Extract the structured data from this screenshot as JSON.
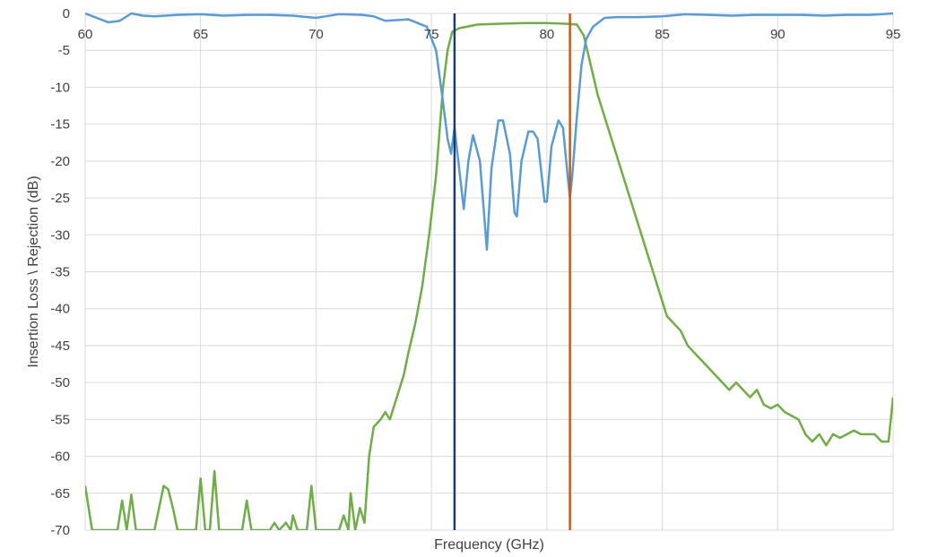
{
  "chart_data": {
    "type": "line",
    "title": "",
    "xlabel": "Frequency (GHz)",
    "ylabel": "Insertion Loss \\ Rejection (dB)",
    "xlim": [
      60,
      95
    ],
    "ylim": [
      -70,
      0
    ],
    "xticks": [
      60,
      65,
      70,
      75,
      80,
      85,
      90,
      95
    ],
    "yticks": [
      0,
      -5,
      -10,
      -15,
      -20,
      -25,
      -30,
      -35,
      -40,
      -45,
      -50,
      -55,
      -60,
      -65,
      -70
    ],
    "grid": true,
    "legend": "none",
    "series": [
      {
        "color": "#5b9bd5",
        "points": [
          [
            60,
            0
          ],
          [
            60.5,
            -0.6
          ],
          [
            61,
            -1.2
          ],
          [
            61.5,
            -1.0
          ],
          [
            62,
            0
          ],
          [
            62.5,
            -0.3
          ],
          [
            63,
            -0.4
          ],
          [
            64,
            -0.2
          ],
          [
            65,
            -0.1
          ],
          [
            66,
            -0.3
          ],
          [
            67,
            -0.2
          ],
          [
            68,
            -0.2
          ],
          [
            69,
            -0.3
          ],
          [
            70,
            -0.6
          ],
          [
            71,
            -0.1
          ],
          [
            72,
            -0.2
          ],
          [
            72.5,
            -0.4
          ],
          [
            73,
            -1.0
          ],
          [
            74,
            -0.8
          ],
          [
            74.8,
            -1.8
          ],
          [
            75.2,
            -5
          ],
          [
            75.5,
            -12
          ],
          [
            75.7,
            -17
          ],
          [
            75.85,
            -19
          ],
          [
            76.0,
            -15.5
          ],
          [
            76.2,
            -21
          ],
          [
            76.4,
            -26.5
          ],
          [
            76.6,
            -20
          ],
          [
            76.8,
            -16.5
          ],
          [
            77.1,
            -20
          ],
          [
            77.3,
            -28
          ],
          [
            77.4,
            -32
          ],
          [
            77.6,
            -21
          ],
          [
            77.9,
            -14.5
          ],
          [
            78.1,
            -14.5
          ],
          [
            78.4,
            -19
          ],
          [
            78.6,
            -27
          ],
          [
            78.7,
            -27.5
          ],
          [
            78.9,
            -20
          ],
          [
            79.2,
            -16
          ],
          [
            79.4,
            -16
          ],
          [
            79.6,
            -17
          ],
          [
            79.9,
            -25.5
          ],
          [
            80.0,
            -25.5
          ],
          [
            80.2,
            -18
          ],
          [
            80.5,
            -14.5
          ],
          [
            80.7,
            -15.5
          ],
          [
            80.9,
            -22
          ],
          [
            81.0,
            -25
          ],
          [
            81.1,
            -22
          ],
          [
            81.3,
            -14
          ],
          [
            81.5,
            -7
          ],
          [
            81.7,
            -3.5
          ],
          [
            82,
            -1.8
          ],
          [
            82.5,
            -0.6
          ],
          [
            83,
            -0.5
          ],
          [
            84,
            -0.5
          ],
          [
            85,
            -0.4
          ],
          [
            86,
            -0.1
          ],
          [
            87,
            -0.2
          ],
          [
            88,
            -0.3
          ],
          [
            89,
            -0.2
          ],
          [
            90,
            -0.2
          ],
          [
            91,
            -0.2
          ],
          [
            92,
            -0.3
          ],
          [
            93,
            -0.2
          ],
          [
            94,
            -0.2
          ],
          [
            95,
            0
          ]
        ]
      },
      {
        "color": "#70ad47",
        "points": [
          [
            60,
            -64
          ],
          [
            60.3,
            -70
          ],
          [
            60.8,
            -70
          ],
          [
            61,
            -70
          ],
          [
            61.4,
            -70
          ],
          [
            61.6,
            -66
          ],
          [
            61.8,
            -70
          ],
          [
            62,
            -65.2
          ],
          [
            62.2,
            -70
          ],
          [
            63,
            -70
          ],
          [
            63.2,
            -67
          ],
          [
            63.4,
            -64
          ],
          [
            63.6,
            -64.5
          ],
          [
            63.8,
            -67
          ],
          [
            64,
            -70
          ],
          [
            64.8,
            -70
          ],
          [
            65,
            -63
          ],
          [
            65.2,
            -70
          ],
          [
            65.4,
            -70
          ],
          [
            65.6,
            -62
          ],
          [
            65.8,
            -70
          ],
          [
            66.8,
            -70
          ],
          [
            67,
            -66
          ],
          [
            67.2,
            -70
          ],
          [
            68,
            -70
          ],
          [
            68.2,
            -69
          ],
          [
            68.4,
            -70
          ],
          [
            68.7,
            -69
          ],
          [
            68.9,
            -70
          ],
          [
            69,
            -68
          ],
          [
            69.2,
            -70
          ],
          [
            69.6,
            -70
          ],
          [
            69.8,
            -64
          ],
          [
            70,
            -70
          ],
          [
            70.2,
            -70
          ],
          [
            71,
            -70
          ],
          [
            71.2,
            -68
          ],
          [
            71.4,
            -70
          ],
          [
            71.5,
            -65
          ],
          [
            71.7,
            -70
          ],
          [
            71.9,
            -67
          ],
          [
            72.1,
            -69
          ],
          [
            72.3,
            -60
          ],
          [
            72.5,
            -56
          ],
          [
            72.8,
            -55
          ],
          [
            73,
            -54
          ],
          [
            73.2,
            -55
          ],
          [
            73.4,
            -53
          ],
          [
            73.6,
            -51
          ],
          [
            73.8,
            -49
          ],
          [
            74,
            -46
          ],
          [
            74.3,
            -42
          ],
          [
            74.6,
            -37
          ],
          [
            74.9,
            -30
          ],
          [
            75.2,
            -22
          ],
          [
            75.5,
            -10
          ],
          [
            75.7,
            -5
          ],
          [
            75.9,
            -2.5
          ],
          [
            76.2,
            -2
          ],
          [
            77,
            -1.5
          ],
          [
            78,
            -1.4
          ],
          [
            79,
            -1.3
          ],
          [
            80,
            -1.3
          ],
          [
            80.8,
            -1.4
          ],
          [
            81.3,
            -1.5
          ],
          [
            81.6,
            -3
          ],
          [
            81.9,
            -7
          ],
          [
            82.2,
            -11
          ],
          [
            82.5,
            -14
          ],
          [
            82.8,
            -17
          ],
          [
            83.1,
            -20
          ],
          [
            83.4,
            -23
          ],
          [
            83.7,
            -26
          ],
          [
            84,
            -29
          ],
          [
            84.3,
            -32
          ],
          [
            84.6,
            -35
          ],
          [
            84.9,
            -38
          ],
          [
            85.2,
            -41
          ],
          [
            85.5,
            -42
          ],
          [
            85.8,
            -43
          ],
          [
            86.1,
            -45
          ],
          [
            86.4,
            -46
          ],
          [
            86.7,
            -47
          ],
          [
            87,
            -48
          ],
          [
            87.3,
            -49
          ],
          [
            87.6,
            -50
          ],
          [
            87.9,
            -51
          ],
          [
            88.2,
            -50
          ],
          [
            88.5,
            -51
          ],
          [
            88.8,
            -52
          ],
          [
            89.1,
            -51
          ],
          [
            89.4,
            -53
          ],
          [
            89.7,
            -53.5
          ],
          [
            90,
            -53
          ],
          [
            90.3,
            -54
          ],
          [
            90.6,
            -54.5
          ],
          [
            90.9,
            -55
          ],
          [
            91.2,
            -57
          ],
          [
            91.5,
            -58
          ],
          [
            91.8,
            -57
          ],
          [
            92.1,
            -58.5
          ],
          [
            92.4,
            -57
          ],
          [
            92.7,
            -57.5
          ],
          [
            93,
            -57
          ],
          [
            93.3,
            -56.5
          ],
          [
            93.6,
            -57
          ],
          [
            93.9,
            -57
          ],
          [
            94.2,
            -57
          ],
          [
            94.5,
            -58
          ],
          [
            94.8,
            -58
          ],
          [
            95,
            -52
          ]
        ]
      }
    ],
    "markers": [
      {
        "x": 76,
        "color": "#1f3a7a"
      },
      {
        "x": 81,
        "color": "#c55a11"
      }
    ]
  }
}
